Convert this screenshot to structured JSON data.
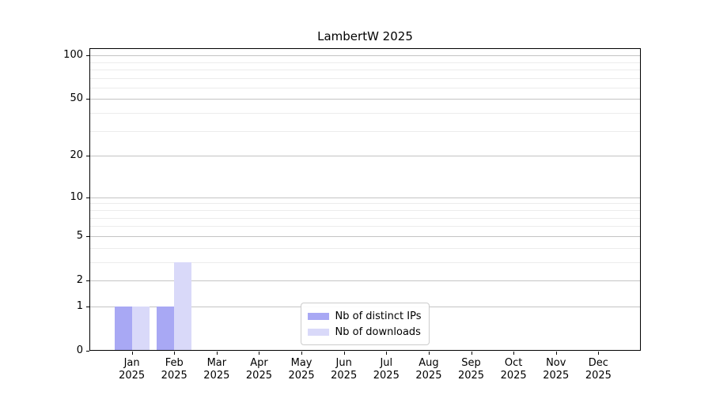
{
  "chart_data": {
    "type": "bar",
    "title": "LambertW 2025",
    "categories": [
      "Jan",
      "Feb",
      "Mar",
      "Apr",
      "May",
      "Jun",
      "Jul",
      "Aug",
      "Sep",
      "Oct",
      "Nov",
      "Dec"
    ],
    "category_year": "2025",
    "series": [
      {
        "name": "Nb of distinct IPs",
        "color": "#a8a8f4",
        "values": [
          1,
          1,
          0,
          0,
          0,
          0,
          0,
          0,
          0,
          0,
          0,
          0
        ]
      },
      {
        "name": "Nb of downloads",
        "color": "#d9d9f9",
        "values": [
          1,
          3,
          0,
          0,
          0,
          0,
          0,
          0,
          0,
          0,
          0,
          0
        ]
      }
    ],
    "yscale": "log1p",
    "ymax": 112,
    "ytick_values": [
      0,
      1,
      2,
      5,
      10,
      20,
      50,
      100
    ],
    "minor_grid_values": [
      3,
      4,
      6,
      7,
      8,
      9,
      30,
      40,
      60,
      70,
      80,
      90
    ],
    "grid": true,
    "legend_position": "bottom-center",
    "colors": {
      "major_grid": "#c4c4c4",
      "minor_grid": "#ececec",
      "axis": "#000000",
      "background": "#ffffff"
    }
  }
}
